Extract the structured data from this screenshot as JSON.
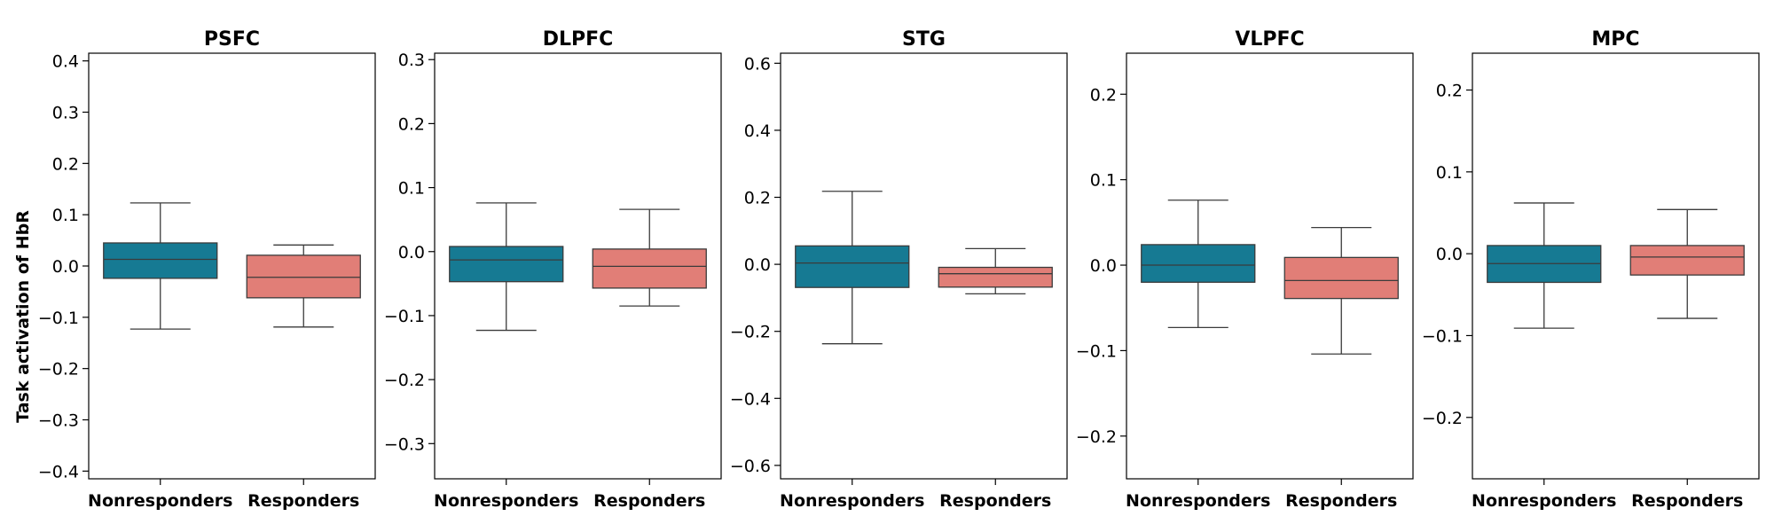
{
  "figure": {
    "ylabel": "Task activation of HbR"
  },
  "chart_data": [
    {
      "type": "box",
      "title": "PSFC",
      "categories": [
        "Nonresponders",
        "Responders"
      ],
      "ylim": [
        -0.415,
        0.415
      ],
      "yticks": [
        -0.4,
        -0.3,
        -0.2,
        -0.1,
        0.0,
        0.1,
        0.2,
        0.3,
        0.4
      ],
      "ytick_labels": [
        "−0.4",
        "−0.3",
        "−0.2",
        "−0.1",
        "0.0",
        "0.1",
        "0.2",
        "0.3",
        "0.4"
      ],
      "boxes": [
        {
          "group": "Nonresponders",
          "whisker_low": -0.123,
          "q1": -0.024,
          "median": 0.013,
          "q3": 0.045,
          "whisker_high": 0.123,
          "color": "#167a93"
        },
        {
          "group": "Responders",
          "whisker_low": -0.119,
          "q1": -0.062,
          "median": -0.022,
          "q3": 0.021,
          "whisker_high": 0.041,
          "color": "#e17e77"
        }
      ]
    },
    {
      "type": "box",
      "title": "DLPFC",
      "categories": [
        "Nonresponders",
        "Responders"
      ],
      "ylim": [
        -0.355,
        0.31
      ],
      "yticks": [
        -0.3,
        -0.2,
        -0.1,
        0.0,
        0.1,
        0.2,
        0.3
      ],
      "ytick_labels": [
        "−0.3",
        "−0.2",
        "−0.1",
        "0.0",
        "0.1",
        "0.2",
        "0.3"
      ],
      "boxes": [
        {
          "group": "Nonresponders",
          "whisker_low": -0.123,
          "q1": -0.047,
          "median": -0.013,
          "q3": 0.008,
          "whisker_high": 0.076,
          "color": "#167a93"
        },
        {
          "group": "Responders",
          "whisker_low": -0.085,
          "q1": -0.057,
          "median": -0.023,
          "q3": 0.004,
          "whisker_high": 0.066,
          "color": "#e17e77"
        }
      ]
    },
    {
      "type": "box",
      "title": "STG",
      "categories": [
        "Nonresponders",
        "Responders"
      ],
      "ylim": [
        -0.64,
        0.63
      ],
      "yticks": [
        -0.6,
        -0.4,
        -0.2,
        0.0,
        0.2,
        0.4,
        0.6
      ],
      "ytick_labels": [
        "−0.6",
        "−0.4",
        "−0.2",
        "0.0",
        "0.2",
        "0.4",
        "0.6"
      ],
      "boxes": [
        {
          "group": "Nonresponders",
          "whisker_low": -0.237,
          "q1": -0.069,
          "median": 0.004,
          "q3": 0.055,
          "whisker_high": 0.218,
          "color": "#167a93"
        },
        {
          "group": "Responders",
          "whisker_low": -0.088,
          "q1": -0.068,
          "median": -0.028,
          "q3": -0.009,
          "whisker_high": 0.047,
          "color": "#e17e77"
        }
      ]
    },
    {
      "type": "box",
      "title": "VLPFC",
      "categories": [
        "Nonresponders",
        "Responders"
      ],
      "ylim": [
        -0.25,
        0.248
      ],
      "yticks": [
        -0.2,
        -0.1,
        0.0,
        0.1,
        0.2
      ],
      "ytick_labels": [
        "−0.2",
        "−0.1",
        "0.0",
        "0.1",
        "0.2"
      ],
      "boxes": [
        {
          "group": "Nonresponders",
          "whisker_low": -0.073,
          "q1": -0.02,
          "median": 0.0,
          "q3": 0.024,
          "whisker_high": 0.076,
          "color": "#167a93"
        },
        {
          "group": "Responders",
          "whisker_low": -0.104,
          "q1": -0.039,
          "median": -0.018,
          "q3": 0.009,
          "whisker_high": 0.044,
          "color": "#e17e77"
        }
      ]
    },
    {
      "type": "box",
      "title": "MPC",
      "categories": [
        "Nonresponders",
        "Responders"
      ],
      "ylim": [
        -0.275,
        0.245
      ],
      "yticks": [
        -0.2,
        -0.1,
        0.0,
        0.1,
        0.2
      ],
      "ytick_labels": [
        "−0.2",
        "−0.1",
        "0.0",
        "0.1",
        "0.2"
      ],
      "boxes": [
        {
          "group": "Nonresponders",
          "whisker_low": -0.091,
          "q1": -0.035,
          "median": -0.012,
          "q3": 0.01,
          "whisker_high": 0.062,
          "color": "#167a93"
        },
        {
          "group": "Responders",
          "whisker_low": -0.079,
          "q1": -0.026,
          "median": -0.004,
          "q3": 0.01,
          "whisker_high": 0.054,
          "color": "#e17e77"
        }
      ]
    }
  ]
}
